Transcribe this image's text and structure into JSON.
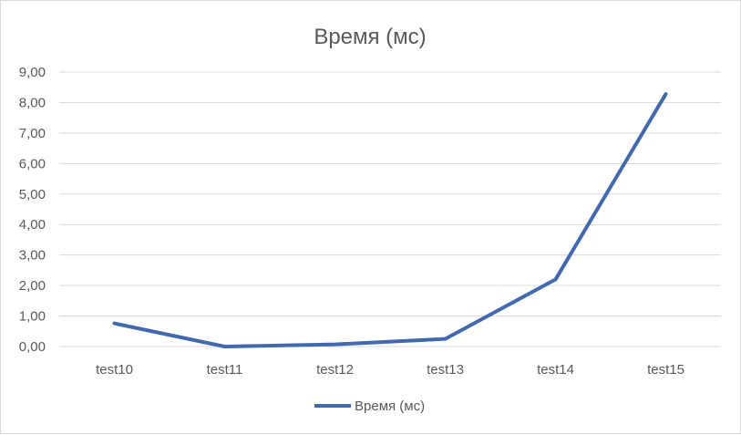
{
  "chart_data": {
    "type": "line",
    "title": "Время (мс)",
    "xlabel": "",
    "ylabel": "",
    "categories": [
      "test10",
      "test11",
      "test12",
      "test13",
      "test14",
      "test15"
    ],
    "series": [
      {
        "name": "Время (мс)",
        "values": [
          0.76,
          0.0,
          0.07,
          0.25,
          2.2,
          8.28
        ],
        "color": "#4269b0"
      }
    ],
    "ylim": [
      0,
      9
    ],
    "yticks": [
      "0,00",
      "1,00",
      "2,00",
      "3,00",
      "4,00",
      "5,00",
      "6,00",
      "7,00",
      "8,00",
      "9,00"
    ],
    "grid": true,
    "legend_position": "bottom",
    "colors": {
      "gridline": "#d9d9d9",
      "text": "#595959"
    }
  }
}
